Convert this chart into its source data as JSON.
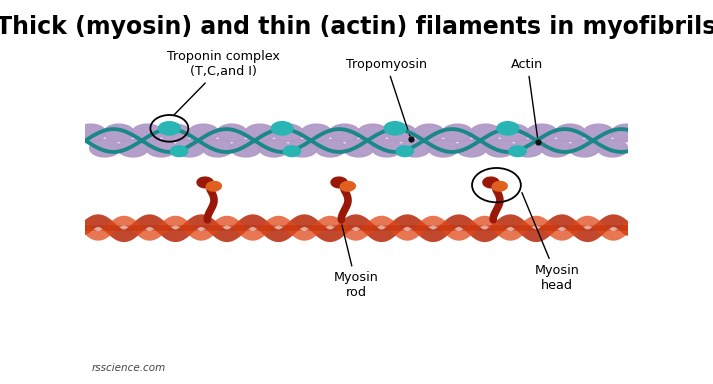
{
  "title": "Thick (myosin) and thin (actin) filaments in myofibrils",
  "title_fontsize": 17,
  "title_fontweight": "bold",
  "background_color": "#ffffff",
  "watermark": "rsscience.com",
  "labels": {
    "troponin": "Troponin complex\n(T,C,and I)",
    "tropomyosin": "Tropomyosin",
    "actin": "Actin",
    "myosin_rod": "Myosin\nrod",
    "myosin_head": "Myosin\nhead"
  },
  "colors": {
    "actin_ball": "#b09ac8",
    "troponin_ball": "#2ab5b5",
    "tropomyosin_line": "#1a8888",
    "myosin_rod_dark": "#b82808",
    "myosin_rod_light": "#e04818",
    "myosin_head_dark": "#9a1808",
    "myosin_head_light": "#e06020",
    "annotation_line": "#000000",
    "title_color": "#000000",
    "label_color": "#000000"
  }
}
